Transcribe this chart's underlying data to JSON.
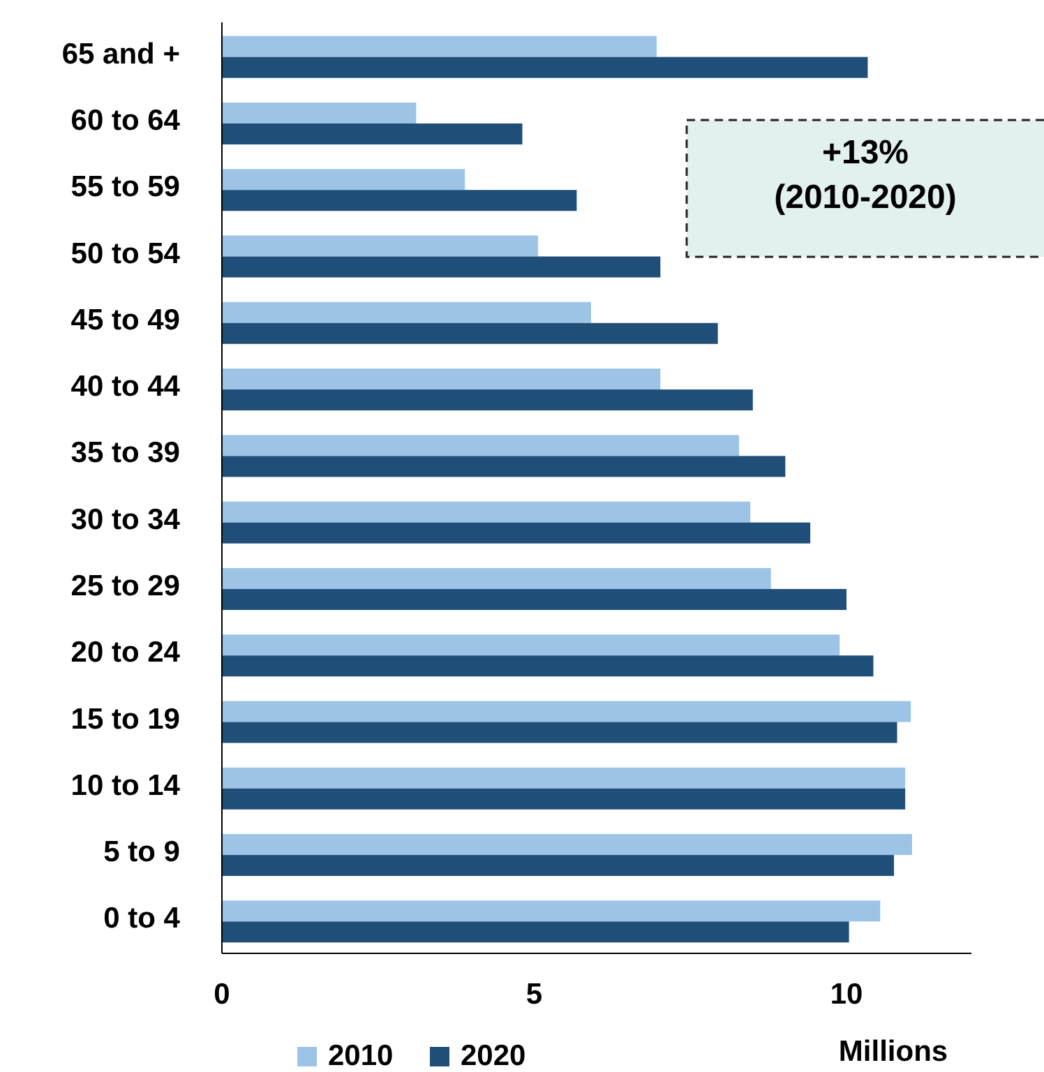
{
  "chart_data": {
    "type": "bar",
    "orientation": "horizontal",
    "xlabel": "Millions",
    "categories": [
      "65 and +",
      "60 to 64",
      "55 to 59",
      "50 to 54",
      "45 to 49",
      "40 to 44",
      "35 to 39",
      "30 to 34",
      "25 to 29",
      "20 to 24",
      "15 to 19",
      "10 to 14",
      "5 to 9",
      "0 to 4"
    ],
    "series": [
      {
        "name": "2010",
        "color": "#9dc3e6",
        "values": [
          6.96,
          3.11,
          3.89,
          5.06,
          5.91,
          7.02,
          8.28,
          8.46,
          8.79,
          9.89,
          11.03,
          10.94,
          11.05,
          10.54
        ]
      },
      {
        "name": "2020",
        "color": "#1f4e79",
        "values": [
          10.34,
          4.81,
          5.68,
          7.02,
          7.94,
          8.5,
          9.02,
          9.42,
          10.0,
          10.43,
          10.81,
          10.94,
          10.76,
          10.04
        ]
      }
    ],
    "xlim": [
      0,
      12
    ],
    "xticks": [
      0,
      5,
      10
    ],
    "grid": false,
    "legend": "bottom",
    "annotations": [
      "+13%\n(2010-2020)"
    ]
  }
}
